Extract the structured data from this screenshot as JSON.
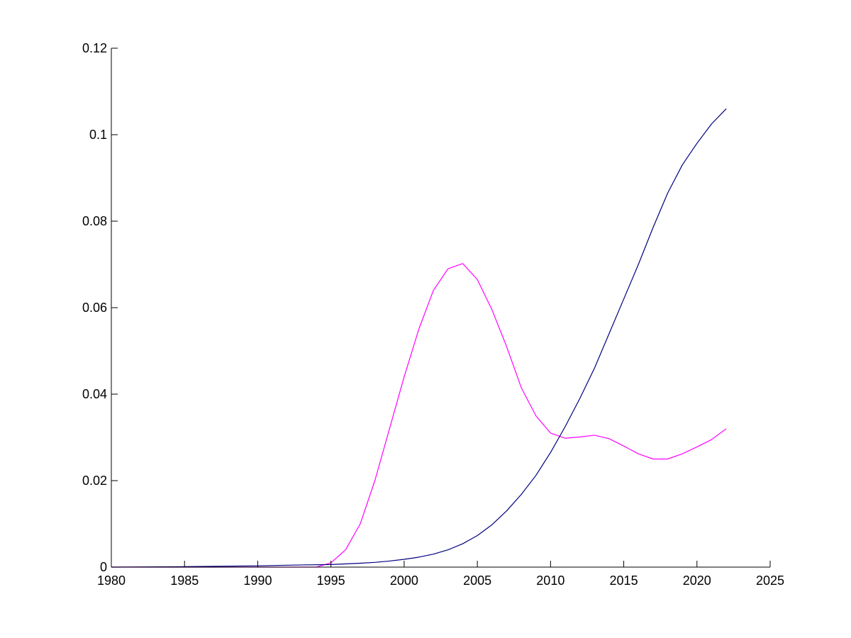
{
  "chart_data": {
    "type": "line",
    "title": "",
    "xlabel": "",
    "ylabel": "",
    "xlim": [
      1980,
      2025
    ],
    "ylim": [
      0,
      0.12
    ],
    "grid": false,
    "x_ticks": [
      1980,
      1985,
      1990,
      1995,
      2000,
      2005,
      2010,
      2015,
      2020,
      2025
    ],
    "x_tick_labels": [
      "1980",
      "1985",
      "1990",
      "1995",
      "2000",
      "2005",
      "2010",
      "2015",
      "2020",
      "2025"
    ],
    "y_ticks": [
      0,
      0.02,
      0.04,
      0.06,
      0.08,
      0.1,
      0.12
    ],
    "y_tick_labels": [
      "0",
      "0.02",
      "0.04",
      "0.06",
      "0.08",
      "0.1",
      "0.12"
    ],
    "series": [
      {
        "color": "#ff00ff",
        "x": [
          1980,
          1981,
          1982,
          1983,
          1984,
          1985,
          1986,
          1987,
          1988,
          1989,
          1990,
          1991,
          1992,
          1993,
          1994,
          1995,
          1996,
          1997,
          1998,
          1999,
          2000,
          2001,
          2002,
          2003,
          2004,
          2005,
          2006,
          2007,
          2008,
          2009,
          2010,
          2011,
          2012,
          2013,
          2014,
          2015,
          2016,
          2017,
          2018,
          2019,
          2020,
          2021,
          2022
        ],
        "y": [
          0,
          0,
          0,
          0,
          0,
          0,
          0,
          0,
          0,
          0,
          0,
          0,
          0,
          0,
          0,
          0.001,
          0.004,
          0.01,
          0.02,
          0.032,
          0.044,
          0.055,
          0.064,
          0.069,
          0.0702,
          0.0665,
          0.0595,
          0.051,
          0.0415,
          0.035,
          0.031,
          0.0298,
          0.0301,
          0.0305,
          0.0297,
          0.028,
          0.0262,
          0.025,
          0.025,
          0.0262,
          0.0278,
          0.0295,
          0.032
        ]
      },
      {
        "color": "#00007f",
        "x": [
          1980,
          1985,
          1990,
          1993,
          1995,
          1997,
          1998,
          1999,
          2000,
          2001,
          2002,
          2003,
          2004,
          2005,
          2006,
          2007,
          2008,
          2009,
          2010,
          2011,
          2012,
          2013,
          2014,
          2015,
          2016,
          2017,
          2018,
          2019,
          2020,
          2021,
          2022
        ],
        "y": [
          0,
          0.0001,
          0.0003,
          0.0005,
          0.0006,
          0.0009,
          0.0011,
          0.0014,
          0.0018,
          0.0023,
          0.003,
          0.004,
          0.0054,
          0.0073,
          0.0098,
          0.013,
          0.0168,
          0.0212,
          0.0265,
          0.0325,
          0.039,
          0.046,
          0.054,
          0.062,
          0.07,
          0.0785,
          0.0865,
          0.093,
          0.098,
          0.1025,
          0.106
        ]
      }
    ]
  }
}
